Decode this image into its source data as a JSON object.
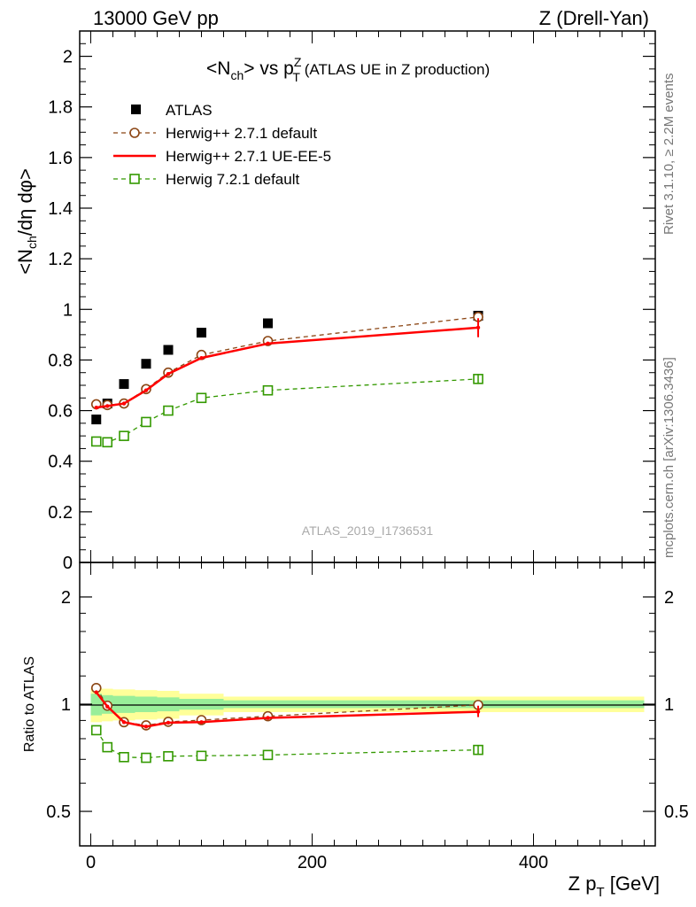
{
  "header": {
    "left": "13000 GeV pp",
    "right": "Z (Drell-Yan)"
  },
  "side_labels": {
    "rivet": "Rivet 3.1.10, ≥ 2.2M events",
    "source": "mcplots.cern.ch [arXiv:1306.3436]"
  },
  "analysis_id": "ATLAS_2019_I1736531",
  "chart_data": [
    {
      "type": "line",
      "panel": "main",
      "title": "<N_ch> vs p_T^Z (ATLAS UE in Z production)",
      "title_parts": {
        "a": "<N",
        "a_sub": "ch",
        "b": "> vs p",
        "b_sub": "T",
        "b_sup": "Z",
        "c": " (ATLAS UE in Z production)"
      },
      "ylabel": "<N_ch/dη dφ>",
      "ylabel_parts": {
        "a": "<N",
        "a_sub": "ch",
        "b": "/dη dφ>"
      },
      "xlim": [
        -10,
        510
      ],
      "ylim": [
        0,
        2.1
      ],
      "yticks": [
        0,
        0.2,
        0.4,
        0.6,
        0.8,
        1,
        1.2,
        1.4,
        1.6,
        1.8,
        2
      ],
      "ytick_labels": [
        "0",
        "0.2",
        "0.4",
        "0.6",
        "0.8",
        "1",
        "1.2",
        "1.4",
        "1.6",
        "1.8",
        "2"
      ],
      "legend_position": "top-left",
      "series": [
        {
          "name": "ATLAS",
          "style": "data",
          "color": "#000000",
          "x": [
            5,
            15,
            30,
            50,
            70,
            100,
            160,
            350
          ],
          "y": [
            0.565,
            0.628,
            0.705,
            0.785,
            0.84,
            0.908,
            0.945,
            0.975
          ]
        },
        {
          "name": "Herwig++ 2.7.1 default",
          "style": "dashed-circle",
          "color": "#8B4513",
          "x": [
            5,
            15,
            30,
            50,
            70,
            100,
            160,
            350
          ],
          "y": [
            0.625,
            0.622,
            0.628,
            0.685,
            0.75,
            0.82,
            0.875,
            0.97
          ]
        },
        {
          "name": "Herwig++ 2.7.1 UE-EE-5",
          "style": "solid",
          "color": "#ff0000",
          "x": [
            5,
            15,
            30,
            50,
            70,
            100,
            160,
            350
          ],
          "y": [
            0.612,
            0.618,
            0.628,
            0.68,
            0.745,
            0.808,
            0.865,
            0.928
          ]
        },
        {
          "name": "Herwig 7.2.1 default",
          "style": "dashed-square",
          "color": "#339900",
          "x": [
            5,
            15,
            30,
            50,
            70,
            100,
            160,
            350
          ],
          "y": [
            0.478,
            0.475,
            0.5,
            0.555,
            0.6,
            0.65,
            0.68,
            0.725
          ]
        }
      ]
    },
    {
      "type": "line",
      "panel": "ratio",
      "ylabel": "Ratio to ATLAS",
      "xlabel": "Z p_T [GeV]",
      "xlabel_parts": {
        "a": "Z p",
        "a_sub": "T",
        "b": " [GeV]"
      },
      "xlim": [
        -10,
        510
      ],
      "ylim": [
        0.4,
        2.5
      ],
      "log_y": true,
      "yticks": [
        0.5,
        1,
        2
      ],
      "ytick_labels": [
        "0.5",
        "1",
        "2"
      ],
      "xticks": [
        0,
        200,
        400
      ],
      "xtick_labels": [
        "0",
        "200",
        "400"
      ],
      "bands": [
        {
          "x_edges": [
            0,
            10,
            20,
            40,
            60,
            80,
            120,
            200,
            500
          ],
          "inner": [
            0.07,
            0.06,
            0.055,
            0.05,
            0.045,
            0.035,
            0.025,
            0.025
          ],
          "outer": [
            0.11,
            0.105,
            0.1,
            0.095,
            0.09,
            0.07,
            0.05,
            0.05
          ]
        }
      ],
      "series": [
        {
          "name": "Herwig++ 2.7.1 default",
          "style": "dashed-circle",
          "color": "#8B4513",
          "x": [
            5,
            15,
            30,
            50,
            70,
            100,
            160,
            350
          ],
          "y": [
            1.11,
            0.99,
            0.89,
            0.872,
            0.892,
            0.902,
            0.925,
            0.995
          ]
        },
        {
          "name": "Herwig++ 2.7.1 UE-EE-5",
          "style": "solid",
          "color": "#ff0000",
          "x": [
            5,
            15,
            30,
            50,
            70,
            100,
            160,
            350
          ],
          "y": [
            1.08,
            0.985,
            0.89,
            0.865,
            0.887,
            0.89,
            0.915,
            0.952
          ]
        },
        {
          "name": "Herwig 7.2.1 default",
          "style": "dashed-square",
          "color": "#339900",
          "x": [
            5,
            15,
            30,
            50,
            70,
            100,
            160,
            350
          ],
          "y": [
            0.845,
            0.757,
            0.71,
            0.707,
            0.714,
            0.716,
            0.72,
            0.744
          ]
        }
      ]
    }
  ]
}
